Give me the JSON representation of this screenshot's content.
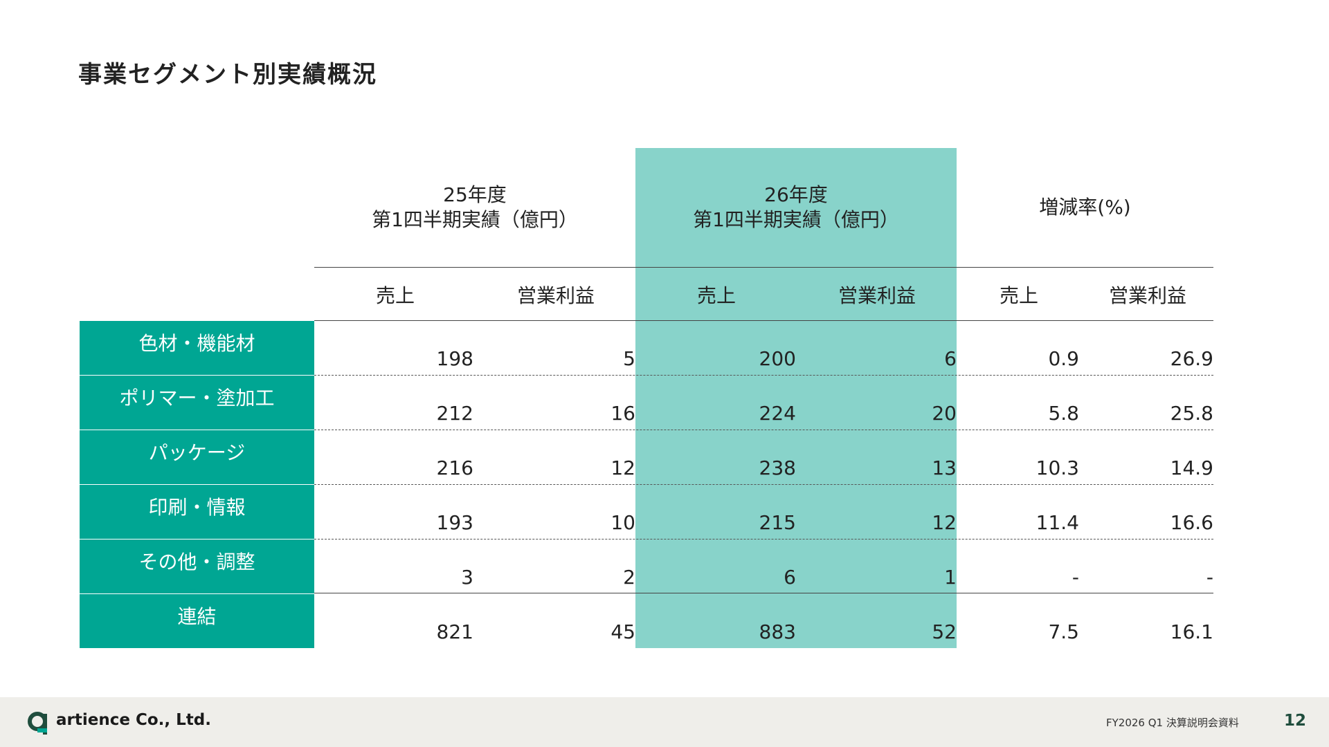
{
  "header": {
    "title": "事業セグメント別実績概況"
  },
  "table": {
    "groups": [
      [
        "25年度",
        "第1四半期実績（億円）"
      ],
      [
        "26年度",
        "第1四半期実績（億円）"
      ],
      [
        "増減率(%)"
      ]
    ],
    "subheaders": [
      "売上",
      "営業利益",
      "売上",
      "営業利益",
      "売上",
      "営業利益"
    ],
    "rows": [
      {
        "label": "色材・機能材",
        "values": [
          198,
          5,
          200,
          6,
          0.9,
          26.9
        ]
      },
      {
        "label": "ポリマー・塗加工",
        "values": [
          212,
          16,
          224,
          20,
          5.8,
          25.8
        ]
      },
      {
        "label": "パッケージ",
        "values": [
          216,
          12,
          238,
          13,
          10.3,
          14.9
        ]
      },
      {
        "label": "印刷・情報",
        "values": [
          193,
          10,
          215,
          12,
          11.4,
          16.6
        ]
      },
      {
        "label": "その他・調整",
        "values": [
          3,
          2,
          6,
          1,
          "-",
          "-"
        ]
      },
      {
        "label": "連結",
        "values": [
          821,
          45,
          883,
          52,
          7.5,
          16.1
        ]
      }
    ]
  },
  "footer": {
    "company": "artience Co., Ltd.",
    "document": "FY2026 Q1 決算説明会資料",
    "page": 12
  }
}
